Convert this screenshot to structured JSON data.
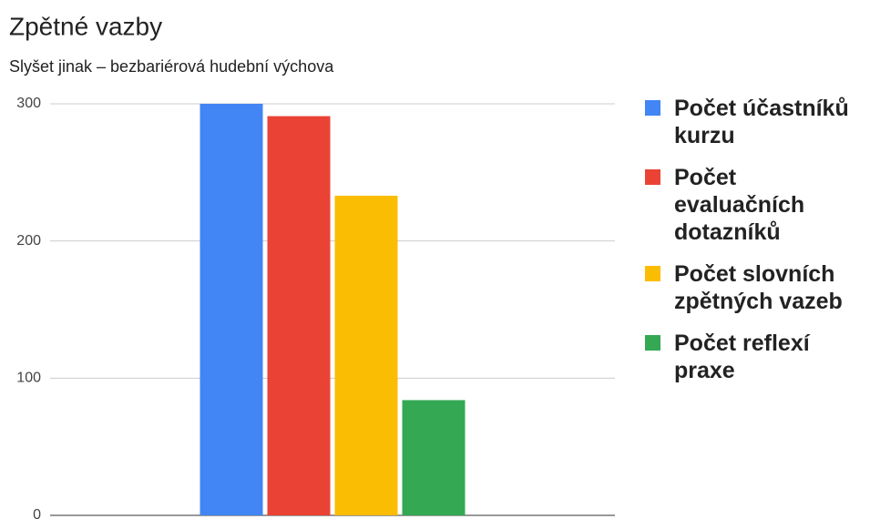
{
  "chart_data": {
    "type": "bar",
    "title": "Zpětné vazby",
    "subtitle": "Slyšet jinak – bezbariérová hudební výchova",
    "categories": [
      null
    ],
    "series": [
      {
        "name": "Počet účastníků kurzu",
        "color": "#4285f4",
        "values": [
          300
        ]
      },
      {
        "name": "Počet evaluačních dotazníků",
        "color": "#ea4335",
        "values": [
          291
        ]
      },
      {
        "name": "Počet slovních zpětných vazeb",
        "color": "#fbbc04",
        "values": [
          233
        ]
      },
      {
        "name": "Počet reflexí praxe",
        "color": "#34a853",
        "values": [
          84
        ]
      }
    ],
    "ylim": [
      0,
      300
    ],
    "yticks": [
      0,
      100,
      200,
      300
    ],
    "grid": true,
    "legend": "right"
  }
}
